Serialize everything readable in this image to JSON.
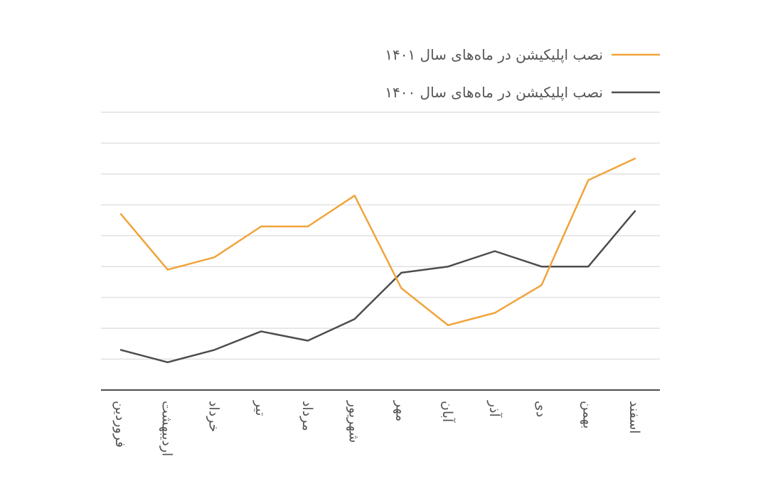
{
  "chart_data": {
    "type": "line",
    "categories": [
      "فروردین",
      "اردیبهشت",
      "خرداد",
      "تیر",
      "مرداد",
      "شهریور",
      "مهر",
      "آبان",
      "آذر",
      "دی",
      "بهمن",
      "اسفند"
    ],
    "series": [
      {
        "name": "نصب اپلیکیشن در ماه‌های سال ۱۴۰۱",
        "color": "#F0A43A",
        "values": [
          5.7,
          3.9,
          4.3,
          5.3,
          5.3,
          6.3,
          3.3,
          2.1,
          2.5,
          3.4,
          6.8,
          7.5
        ]
      },
      {
        "name": "نصب اپلیکیشن در ماه‌های سال ۱۴۰۰",
        "color": "#4D4D4F",
        "values": [
          1.3,
          0.9,
          1.3,
          1.9,
          1.6,
          2.3,
          3.8,
          4.0,
          4.5,
          4.0,
          4.0,
          5.8
        ]
      }
    ],
    "ylim": [
      0,
      9
    ],
    "y_gridlines": 9,
    "grid": true,
    "legend_position": "top-right",
    "title": "",
    "xlabel": "",
    "ylabel": ""
  }
}
